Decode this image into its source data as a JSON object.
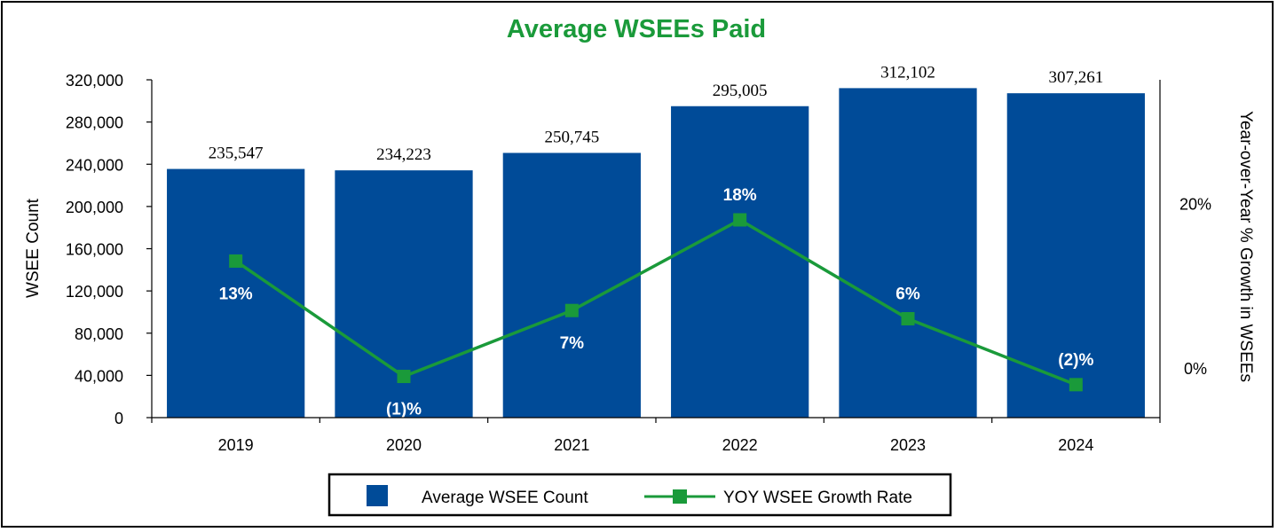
{
  "chart_data": {
    "type": "bar",
    "title": "Average WSEEs Paid",
    "categories": [
      "2019",
      "2020",
      "2021",
      "2022",
      "2023",
      "2024"
    ],
    "series": [
      {
        "name": "Average WSEE Count",
        "kind": "bar",
        "axis": "left",
        "values": [
          235547,
          234223,
          250745,
          295005,
          312102,
          307261
        ],
        "labels": [
          "235,547",
          "234,223",
          "250,745",
          "295,005",
          "312,102",
          "307,261"
        ]
      },
      {
        "name": "YOY WSEE Growth Rate",
        "kind": "line",
        "axis": "right",
        "values": [
          13,
          -1,
          7,
          18,
          6,
          -2
        ],
        "labels": [
          "13%",
          "(1)%",
          "7%",
          "18%",
          "6%",
          "(2)%"
        ]
      }
    ],
    "ylabel": "WSEE Count",
    "ylim": [
      0,
      320000
    ],
    "yticks": [
      "0",
      "40,000",
      "80,000",
      "120,000",
      "160,000",
      "200,000",
      "240,000",
      "280,000",
      "320,000"
    ],
    "y2label": "Year-over-Year % Growth in WSEEs",
    "y2lim": [
      -6,
      35
    ],
    "y2ticks": [
      {
        "value": 0,
        "label": "0%"
      },
      {
        "value": 20,
        "label": "20%"
      }
    ],
    "legend": "bottom",
    "colors": {
      "bar": "#004b98",
      "line": "#1a9a3a",
      "title": "#1a9a3a"
    }
  }
}
